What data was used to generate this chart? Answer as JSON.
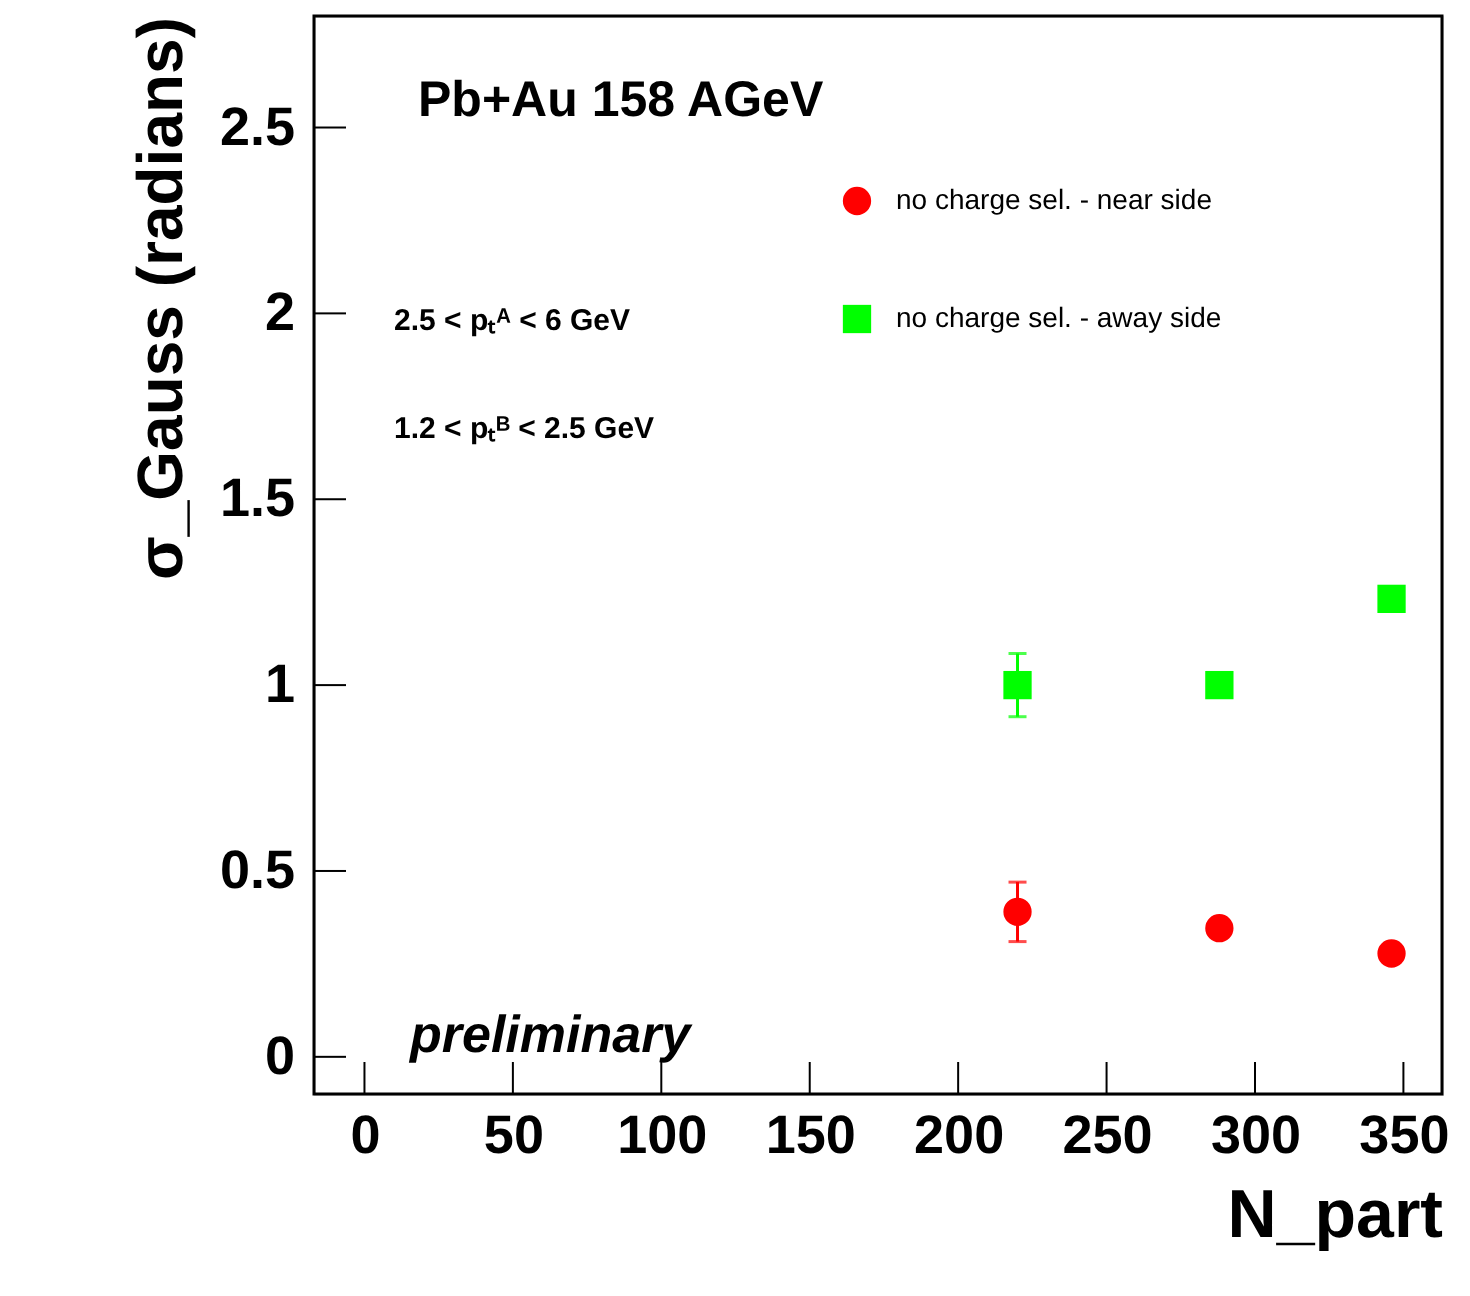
{
  "chart_data": {
    "type": "scatter",
    "title": "Pb+Au 158 AGeV",
    "xlabel": "N_part",
    "ylabel": "σ_Gauss (radians)",
    "xlim": [
      -17,
      363
    ],
    "xticks": [
      0,
      50,
      100,
      150,
      200,
      250,
      300,
      350
    ],
    "ylim": [
      -0.1,
      2.8
    ],
    "yticks": [
      0,
      0.5,
      1,
      1.5,
      2,
      2.5
    ],
    "grid": false,
    "legend": "top right",
    "series": [
      {
        "name": "no charge sel. - near side",
        "color": "#ff0000",
        "marker": "circle",
        "x": [
          220,
          288,
          346
        ],
        "values": [
          0.39,
          0.346,
          0.278
        ],
        "errors": [
          0.08,
          null,
          null
        ]
      },
      {
        "name": "no charge sel. - away side",
        "color": "#00ff00",
        "marker": "square",
        "x": [
          220,
          288,
          346
        ],
        "values": [
          1.0,
          1.0,
          1.232
        ],
        "errors": [
          0.085,
          null,
          null
        ]
      }
    ],
    "annotations": [
      "2.5 < pₜᴬ < 6 GeV",
      "1.2 < pₜᴮ < 2.5 GeV",
      "preliminary"
    ]
  }
}
